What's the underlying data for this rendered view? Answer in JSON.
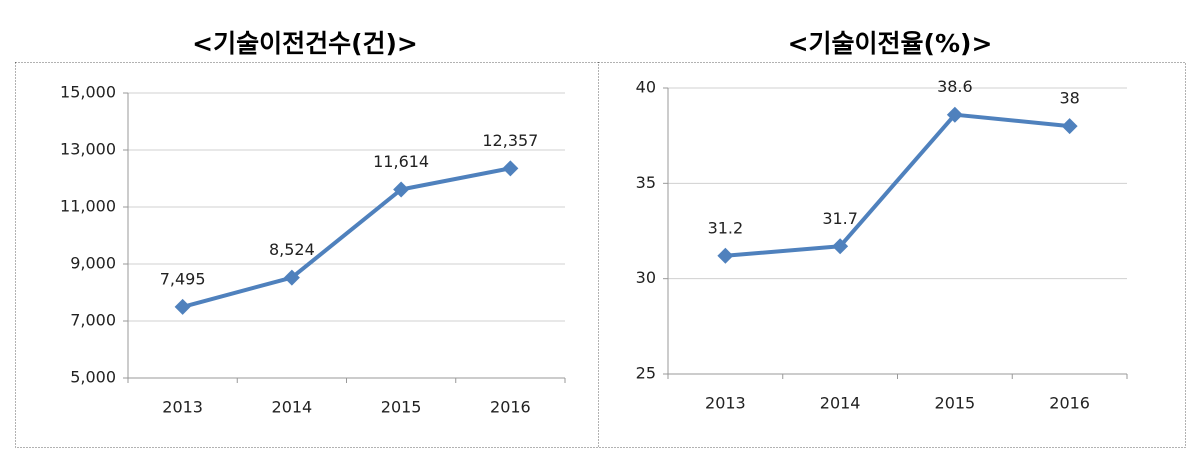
{
  "chart_data": [
    {
      "type": "line",
      "title": "<기술이전건수(건)>",
      "categories": [
        "2013",
        "2014",
        "2015",
        "2016"
      ],
      "values": [
        7495,
        8524,
        11614,
        12357
      ],
      "value_labels": [
        "7,495",
        "8,524",
        "11,614",
        "12,357"
      ],
      "color": "#4f81bd",
      "ylim": [
        5000,
        15000
      ],
      "yticks": [
        {
          "value": 5000,
          "label": "5,000"
        },
        {
          "value": 7000,
          "label": "7,000"
        },
        {
          "value": 9000,
          "label": "9,000"
        },
        {
          "value": 11000,
          "label": "11,000"
        },
        {
          "value": 13000,
          "label": "13,000"
        },
        {
          "value": 15000,
          "label": "15,000"
        }
      ],
      "grid": true
    },
    {
      "type": "line",
      "title": "<기술이전율(%)>",
      "categories": [
        "2013",
        "2014",
        "2015",
        "2016"
      ],
      "values": [
        31.2,
        31.7,
        38.6,
        38
      ],
      "color": "#4f81bd",
      "ylim": [
        25,
        40
      ],
      "yticks": [
        25,
        30,
        35,
        40
      ],
      "grid": true
    }
  ]
}
